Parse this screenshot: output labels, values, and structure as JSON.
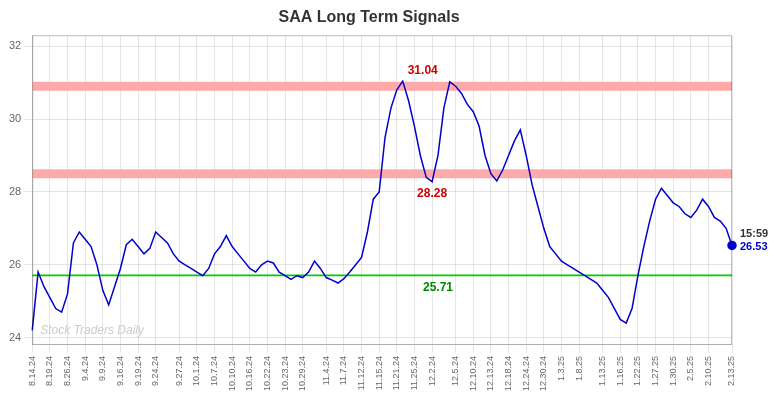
{
  "chart_data": {
    "type": "line",
    "title": "SAA Long Term Signals",
    "color": "#0000cc",
    "grid": true,
    "ylim": [
      23.8,
      32.3
    ],
    "yticks": [
      24,
      26,
      28,
      30,
      32
    ],
    "categories": [
      "8.14.24",
      null,
      null,
      "8.19.24",
      null,
      null,
      "8.26.24",
      null,
      null,
      "9.4.24",
      null,
      null,
      "9.9.24",
      null,
      null,
      "9.16.24",
      null,
      null,
      "9.19.24",
      null,
      null,
      "9.24.24",
      null,
      null,
      null,
      "9.27.24",
      null,
      null,
      "10.1.24",
      null,
      null,
      "10.7.24",
      null,
      null,
      "10.10.24",
      null,
      null,
      "10.16.24",
      null,
      null,
      "10.22.24",
      null,
      null,
      "10.23.24",
      null,
      null,
      "10.29.24",
      null,
      null,
      null,
      "11.4.24",
      null,
      null,
      "11.7.24",
      null,
      null,
      "11.12.24",
      null,
      null,
      "11.15.24",
      null,
      null,
      "11.21.24",
      null,
      null,
      "11.25.24",
      null,
      null,
      "12.2.24",
      null,
      null,
      null,
      "12.5.24",
      null,
      null,
      "12.10.24",
      null,
      null,
      "12.13.24",
      null,
      null,
      "12.18.24",
      null,
      null,
      "12.24.24",
      null,
      null,
      "12.30.24",
      null,
      null,
      "1.3.25",
      null,
      null,
      "1.8.25",
      null,
      null,
      null,
      "1.13.25",
      null,
      null,
      "1.16.25",
      null,
      null,
      "1.22.25",
      null,
      null,
      "1.27.25",
      null,
      null,
      "1.30.25",
      null,
      null,
      "2.5.25",
      null,
      null,
      "2.10.25",
      null,
      null,
      null,
      "2.13.25"
    ],
    "values": [
      24.2,
      25.8,
      25.4,
      25.1,
      24.8,
      24.7,
      25.2,
      26.6,
      26.9,
      26.7,
      26.5,
      26.0,
      25.3,
      24.9,
      25.4,
      25.9,
      26.55,
      26.7,
      26.5,
      26.3,
      26.45,
      26.9,
      26.75,
      26.6,
      26.3,
      26.1,
      26.0,
      25.9,
      25.8,
      25.7,
      25.9,
      26.3,
      26.5,
      26.8,
      26.5,
      26.3,
      26.1,
      25.9,
      25.8,
      26.0,
      26.1,
      26.05,
      25.8,
      25.7,
      25.6,
      25.7,
      25.65,
      25.8,
      26.1,
      25.9,
      25.65,
      25.58,
      25.5,
      25.62,
      25.8,
      26.0,
      26.2,
      26.9,
      27.8,
      28.0,
      29.5,
      30.3,
      30.8,
      31.04,
      30.5,
      29.8,
      29.0,
      28.4,
      28.28,
      29.0,
      30.3,
      31.02,
      30.9,
      30.7,
      30.4,
      30.2,
      29.8,
      29.0,
      28.5,
      28.3,
      28.6,
      29.0,
      29.4,
      29.7,
      29.0,
      28.2,
      27.6,
      27.0,
      26.5,
      26.3,
      26.1,
      26.0,
      25.9,
      25.8,
      25.7,
      25.6,
      25.5,
      25.3,
      25.1,
      24.8,
      24.5,
      24.4,
      24.8,
      25.7,
      26.5,
      27.2,
      27.8,
      28.1,
      27.9,
      27.7,
      27.6,
      27.4,
      27.3,
      27.5,
      27.8,
      27.6,
      27.3,
      27.2,
      27.0,
      26.53
    ],
    "hlines": [
      {
        "value": 30.9,
        "color": "#ffaaaa",
        "line_style": "band"
      },
      {
        "value": 28.5,
        "color": "#ffaaaa",
        "line_style": "band"
      },
      {
        "value": 25.71,
        "color": "#00cc00",
        "line_style": "solid"
      }
    ],
    "annotations": [
      {
        "text": "31.04",
        "color": "#cc0000",
        "index": 63,
        "y": 31.04,
        "position": "above-right"
      },
      {
        "text": "28.28",
        "color": "#cc0000",
        "index": 68,
        "y": 28.28,
        "position": "below"
      },
      {
        "text": "25.71",
        "color": "#008800",
        "index": 69,
        "y": 25.71,
        "position": "below"
      },
      {
        "text": "15:59",
        "color": "#333333",
        "index": 119,
        "y": 26.53,
        "position": "right-up"
      },
      {
        "text": "26.53",
        "color": "#0000cc",
        "index": 119,
        "y": 26.53,
        "position": "right"
      }
    ],
    "watermark": {
      "text": "Stock Traders Daily",
      "color": "#cccccc"
    }
  }
}
